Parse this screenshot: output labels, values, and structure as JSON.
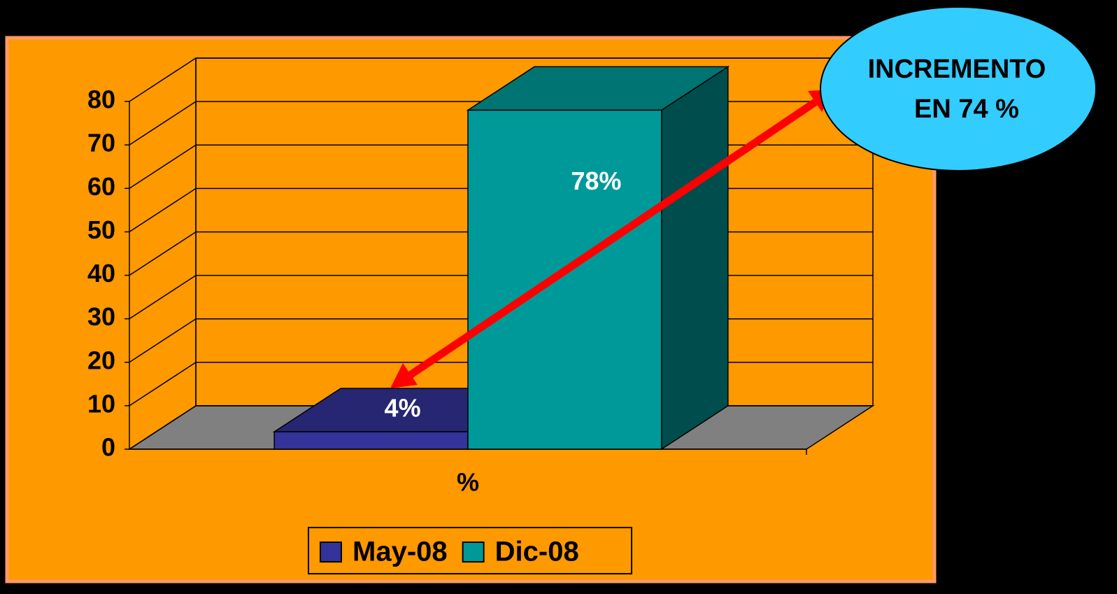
{
  "chart_data": {
    "type": "bar",
    "categories": [
      "%"
    ],
    "series": [
      {
        "name": "May-08",
        "color": "#333399",
        "values": [
          4
        ],
        "value_labels": [
          "4%"
        ]
      },
      {
        "name": "Dic-08",
        "color": "#009999",
        "values": [
          78
        ],
        "value_labels": [
          "78%"
        ]
      }
    ],
    "ylim": [
      0,
      80
    ],
    "yticks": [
      0,
      10,
      20,
      30,
      40,
      50,
      60,
      70,
      80
    ],
    "grid": true,
    "legend": "bottom",
    "annotation": [
      "INCREMENTO",
      "EN 74 %"
    ]
  }
}
